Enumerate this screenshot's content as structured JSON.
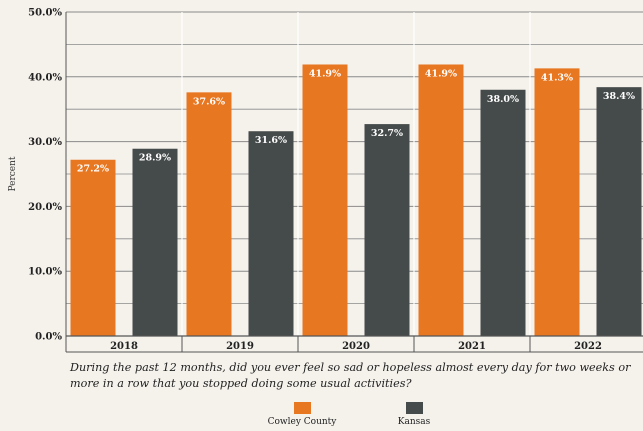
{
  "chart_data": {
    "type": "bar",
    "categories": [
      "2018",
      "2019",
      "2020",
      "2021",
      "2022"
    ],
    "series": [
      {
        "name": "Cowley County",
        "color": "#e87722",
        "values": [
          27.2,
          37.6,
          41.9,
          41.9,
          41.3
        ],
        "labels": [
          "27.2%",
          "37.6%",
          "41.9%",
          "41.9%",
          "41.3%"
        ]
      },
      {
        "name": "Kansas",
        "color": "#454a4a",
        "values": [
          28.9,
          31.6,
          32.7,
          38.0,
          38.4
        ],
        "labels": [
          "28.9%",
          "31.6%",
          "32.7%",
          "38.0%",
          "38.4%"
        ]
      }
    ],
    "ylabel": "Percent",
    "xlabel": "During the past 12 months, did you ever feel so sad or hopeless almost every day for two weeks or more in a row that you stopped doing some usual activities?",
    "ylim": [
      0,
      50
    ],
    "yticks": [
      "0.0%",
      "10.0%",
      "20.0%",
      "30.0%",
      "40.0%",
      "50.0%"
    ],
    "ytick_values": [
      0,
      10,
      20,
      30,
      40,
      50
    ],
    "grid": true,
    "legend_position": "bottom"
  }
}
